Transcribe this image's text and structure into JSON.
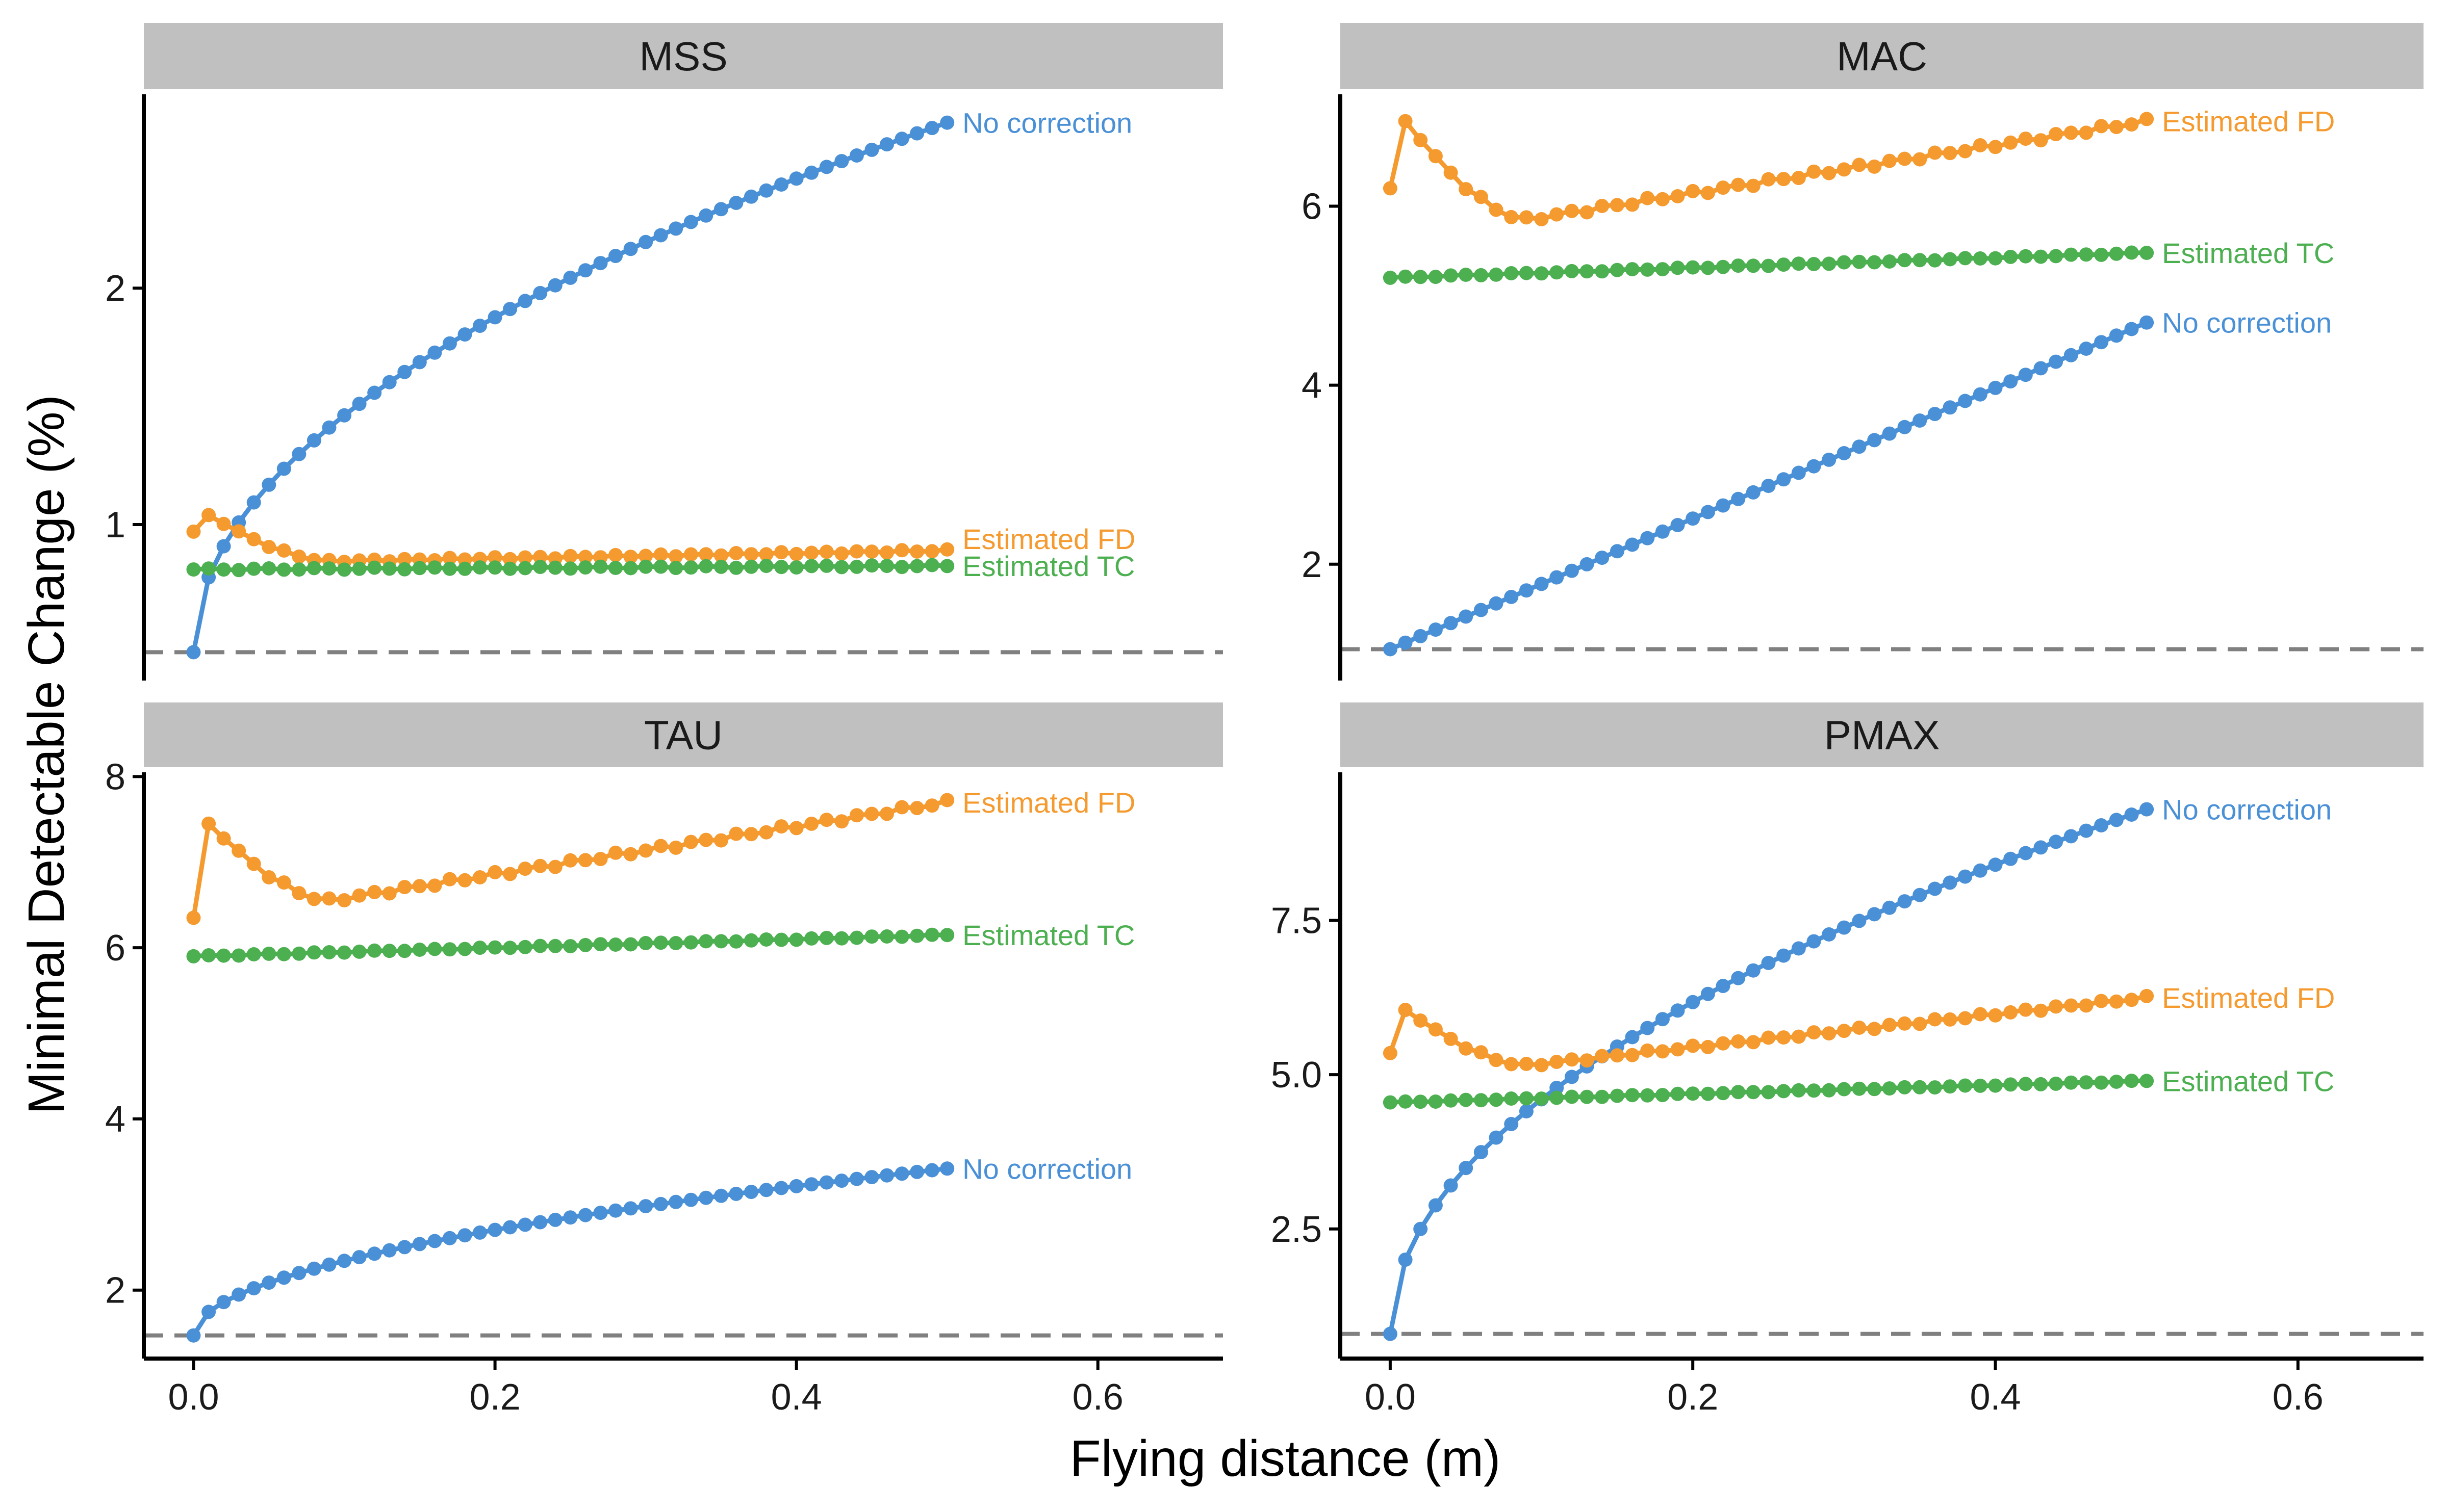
{
  "x_axis_title": "Flying distance (m)",
  "y_axis_title": "Minimal Detectable Change (%)",
  "colors": {
    "no_correction": "#4a90d6",
    "estimated_fd": "#f59a2f",
    "estimated_tc": "#4caf50",
    "reference_line": "#808080",
    "strip": "#c0c0c0"
  },
  "chart_data": [
    {
      "type": "line",
      "panel": "MSS",
      "xlim": [
        -0.033,
        0.683
      ],
      "ylim": [
        0.34,
        2.82
      ],
      "x_ticks": [
        0.0,
        0.2,
        0.4,
        0.6
      ],
      "x_tick_labels": [
        "0.0",
        "0.2",
        "0.4",
        "0.6"
      ],
      "y_ticks": [
        1,
        2
      ],
      "y_tick_labels": [
        "1",
        "2"
      ],
      "reference_y": 0.46,
      "series": [
        {
          "name": "No correction",
          "key": "no_correction",
          "start": 0.46,
          "end": 2.7,
          "shape": "sqrt",
          "label_y": 2.7
        },
        {
          "name": "Estimated FD",
          "key": "estimated_fd",
          "start": 0.97,
          "end": 0.89,
          "peak": 1.04,
          "plateau": 0.845,
          "shape": "peaked",
          "label_y": 0.94
        },
        {
          "name": "Estimated TC",
          "key": "estimated_tc",
          "start": 0.81,
          "end": 0.825,
          "shape": "flat",
          "label_y": 0.825
        }
      ]
    },
    {
      "type": "line",
      "panel": "MAC",
      "xlim": [
        -0.033,
        0.683
      ],
      "ylim": [
        0.7,
        7.25
      ],
      "x_ticks": [
        0.0,
        0.2,
        0.4,
        0.6
      ],
      "x_tick_labels": [
        "0.0",
        "0.2",
        "0.4",
        "0.6"
      ],
      "y_ticks": [
        2,
        4,
        6
      ],
      "y_tick_labels": [
        "2",
        "4",
        "6"
      ],
      "reference_y": 1.05,
      "series": [
        {
          "name": "Estimated FD",
          "key": "estimated_fd",
          "start": 6.2,
          "end": 6.95,
          "peak": 6.95,
          "plateau": 5.85,
          "shape": "peaked",
          "label_y": 6.95
        },
        {
          "name": "Estimated TC",
          "key": "estimated_tc",
          "start": 5.2,
          "end": 5.48,
          "shape": "flat",
          "label_y": 5.48
        },
        {
          "name": "No correction",
          "key": "no_correction",
          "start": 1.05,
          "end": 4.7,
          "shape": "linear",
          "label_y": 4.7
        }
      ]
    },
    {
      "type": "line",
      "panel": "TAU",
      "xlim": [
        -0.033,
        0.683
      ],
      "ylim": [
        1.2,
        8.05
      ],
      "x_ticks": [
        0.0,
        0.2,
        0.4,
        0.6
      ],
      "x_tick_labels": [
        "0.0",
        "0.2",
        "0.4",
        "0.6"
      ],
      "y_ticks": [
        2,
        4,
        6,
        8
      ],
      "y_tick_labels": [
        "2",
        "4",
        "6",
        "8"
      ],
      "reference_y": 1.47,
      "series": [
        {
          "name": "Estimated FD",
          "key": "estimated_fd",
          "start": 6.35,
          "end": 7.7,
          "peak": 7.45,
          "plateau": 6.55,
          "shape": "peaked",
          "label_y": 7.7
        },
        {
          "name": "Estimated TC",
          "key": "estimated_tc",
          "start": 5.9,
          "end": 6.15,
          "shape": "flat",
          "label_y": 6.15
        },
        {
          "name": "No correction",
          "key": "no_correction",
          "start": 1.47,
          "end": 3.42,
          "shape": "sqrt",
          "label_y": 3.42
        }
      ]
    },
    {
      "type": "line",
      "panel": "PMAX",
      "xlim": [
        -0.033,
        0.683
      ],
      "ylim": [
        0.4,
        9.9
      ],
      "x_ticks": [
        0.0,
        0.2,
        0.4,
        0.6
      ],
      "x_tick_labels": [
        "0.0",
        "0.2",
        "0.4",
        "0.6"
      ],
      "y_ticks": [
        2.5,
        5.0,
        7.5
      ],
      "y_tick_labels": [
        "2.5",
        "5.0",
        "7.5"
      ],
      "reference_y": 0.8,
      "series": [
        {
          "name": "No correction",
          "key": "no_correction",
          "start": 0.8,
          "end": 9.3,
          "shape": "sqrt",
          "label_y": 9.3
        },
        {
          "name": "Estimated FD",
          "key": "estimated_fd",
          "start": 5.35,
          "end": 6.25,
          "peak": 6.05,
          "plateau": 5.15,
          "shape": "peaked",
          "label_y": 6.25
        },
        {
          "name": "Estimated TC",
          "key": "estimated_tc",
          "start": 4.55,
          "end": 4.9,
          "shape": "flat",
          "label_y": 4.9
        }
      ]
    }
  ]
}
